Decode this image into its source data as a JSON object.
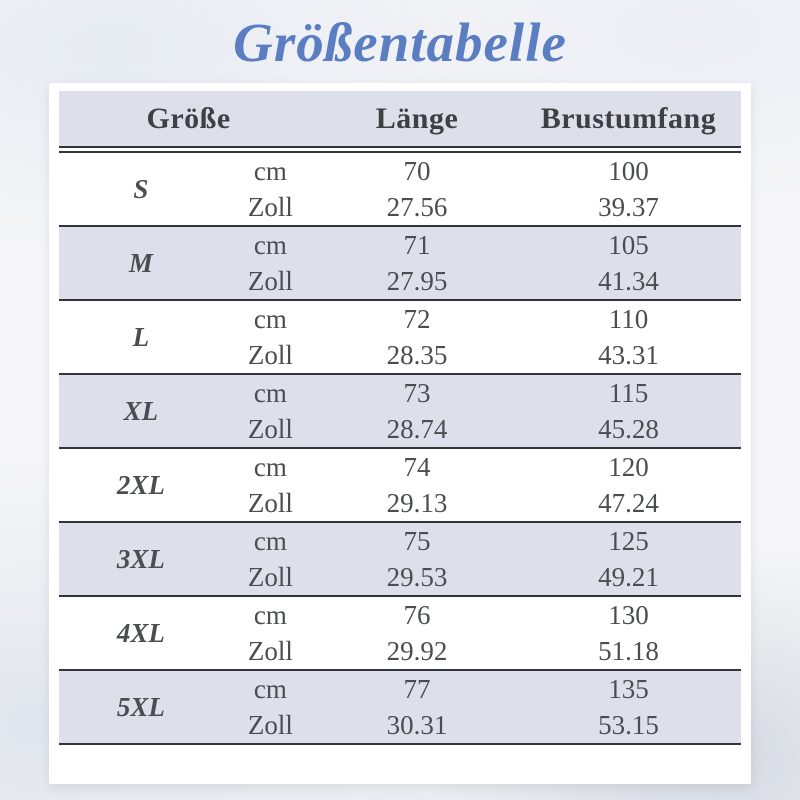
{
  "title": "Größentabelle",
  "table": {
    "headers": {
      "size": "Größe",
      "length": "Länge",
      "chest": "Brustumfang"
    },
    "unit_cm": "cm",
    "unit_inch": "Zoll",
    "rows": [
      {
        "size": "S",
        "cm_length": "70",
        "cm_chest": "100",
        "zoll_length": "27.56",
        "zoll_chest": "39.37"
      },
      {
        "size": "M",
        "cm_length": "71",
        "cm_chest": "105",
        "zoll_length": "27.95",
        "zoll_chest": "41.34"
      },
      {
        "size": "L",
        "cm_length": "72",
        "cm_chest": "110",
        "zoll_length": "28.35",
        "zoll_chest": "43.31"
      },
      {
        "size": "XL",
        "cm_length": "73",
        "cm_chest": "115",
        "zoll_length": "28.74",
        "zoll_chest": "45.28"
      },
      {
        "size": "2XL",
        "cm_length": "74",
        "cm_chest": "120",
        "zoll_length": "29.13",
        "zoll_chest": "47.24"
      },
      {
        "size": "3XL",
        "cm_length": "75",
        "cm_chest": "125",
        "zoll_length": "29.53",
        "zoll_chest": "49.21"
      },
      {
        "size": "4XL",
        "cm_length": "76",
        "cm_chest": "130",
        "zoll_length": "29.92",
        "zoll_chest": "51.18"
      },
      {
        "size": "5XL",
        "cm_length": "77",
        "cm_chest": "135",
        "zoll_length": "30.31",
        "zoll_chest": "53.15"
      }
    ]
  },
  "colors": {
    "title": "#5b7dc2",
    "row_shade": "#dde0eb",
    "rule": "#33343a",
    "text": "#4b4d51",
    "head_text": "#3e4043"
  }
}
